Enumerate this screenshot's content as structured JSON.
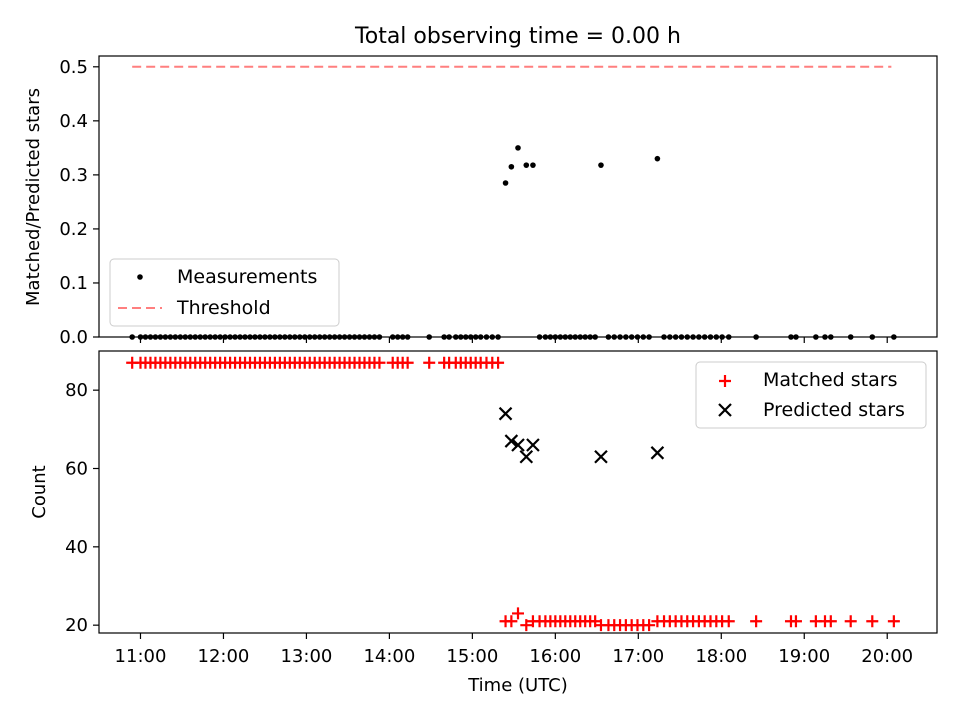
{
  "chart_data": [
    {
      "type": "scatter",
      "title": "Total observing time = 0.00 h",
      "xlabel": "",
      "ylabel": "Matched/Predicted stars",
      "xlim": [
        10.5,
        20.6
      ],
      "ylim": [
        0.0,
        0.52
      ],
      "yticks": [
        "0.0",
        "0.1",
        "0.2",
        "0.3",
        "0.4",
        "0.5"
      ],
      "grid": false,
      "legend_position": "lower-left",
      "colors": {
        "measurements": "#000000",
        "threshold": "#ff7f7f"
      },
      "legend": [
        {
          "label": "Measurements",
          "marker": "dot",
          "color": "#000000"
        },
        {
          "label": "Threshold",
          "marker": "dashed-line",
          "color": "#ff7f7f"
        }
      ],
      "threshold": {
        "y": 0.5,
        "x_start": 10.9,
        "x_end": 20.05
      },
      "series": [
        {
          "name": "Measurements",
          "points": [
            [
              15.4,
              0.285
            ],
            [
              15.47,
              0.315
            ],
            [
              15.55,
              0.35
            ],
            [
              15.65,
              0.318
            ],
            [
              15.73,
              0.318
            ],
            [
              16.55,
              0.318
            ],
            [
              17.23,
              0.33
            ],
            [
              10.9,
              0
            ],
            [
              11.0,
              0
            ],
            [
              11.06,
              0
            ],
            [
              11.12,
              0
            ],
            [
              11.18,
              0
            ],
            [
              11.24,
              0
            ],
            [
              11.3,
              0
            ],
            [
              11.36,
              0
            ],
            [
              11.42,
              0
            ],
            [
              11.48,
              0
            ],
            [
              11.54,
              0
            ],
            [
              11.6,
              0
            ],
            [
              11.66,
              0
            ],
            [
              11.72,
              0
            ],
            [
              11.78,
              0
            ],
            [
              11.84,
              0
            ],
            [
              11.9,
              0
            ],
            [
              11.96,
              0
            ],
            [
              12.02,
              0
            ],
            [
              12.08,
              0
            ],
            [
              12.14,
              0
            ],
            [
              12.2,
              0
            ],
            [
              12.26,
              0
            ],
            [
              12.32,
              0
            ],
            [
              12.38,
              0
            ],
            [
              12.44,
              0
            ],
            [
              12.5,
              0
            ],
            [
              12.56,
              0
            ],
            [
              12.62,
              0
            ],
            [
              12.68,
              0
            ],
            [
              12.74,
              0
            ],
            [
              12.8,
              0
            ],
            [
              12.86,
              0
            ],
            [
              12.92,
              0
            ],
            [
              12.98,
              0
            ],
            [
              13.04,
              0
            ],
            [
              13.1,
              0
            ],
            [
              13.16,
              0
            ],
            [
              13.22,
              0
            ],
            [
              13.28,
              0
            ],
            [
              13.34,
              0
            ],
            [
              13.4,
              0
            ],
            [
              13.46,
              0
            ],
            [
              13.52,
              0
            ],
            [
              13.58,
              0
            ],
            [
              13.64,
              0
            ],
            [
              13.7,
              0
            ],
            [
              13.76,
              0
            ],
            [
              13.82,
              0
            ],
            [
              13.88,
              0
            ],
            [
              14.04,
              0
            ],
            [
              14.1,
              0
            ],
            [
              14.16,
              0
            ],
            [
              14.22,
              0
            ],
            [
              14.48,
              0
            ],
            [
              14.66,
              0
            ],
            [
              14.72,
              0
            ],
            [
              14.8,
              0
            ],
            [
              14.86,
              0
            ],
            [
              14.92,
              0
            ],
            [
              14.98,
              0
            ],
            [
              15.04,
              0
            ],
            [
              15.1,
              0
            ],
            [
              15.17,
              0
            ],
            [
              15.24,
              0
            ],
            [
              15.31,
              0
            ],
            [
              15.81,
              0
            ],
            [
              15.88,
              0
            ],
            [
              15.94,
              0
            ],
            [
              16.0,
              0
            ],
            [
              16.06,
              0
            ],
            [
              16.12,
              0
            ],
            [
              16.18,
              0
            ],
            [
              16.24,
              0
            ],
            [
              16.3,
              0
            ],
            [
              16.36,
              0
            ],
            [
              16.42,
              0
            ],
            [
              16.48,
              0
            ],
            [
              16.64,
              0
            ],
            [
              16.71,
              0
            ],
            [
              16.78,
              0
            ],
            [
              16.85,
              0
            ],
            [
              16.92,
              0
            ],
            [
              16.99,
              0
            ],
            [
              17.06,
              0
            ],
            [
              17.13,
              0
            ],
            [
              17.31,
              0
            ],
            [
              17.38,
              0
            ],
            [
              17.45,
              0
            ],
            [
              17.52,
              0
            ],
            [
              17.59,
              0
            ],
            [
              17.66,
              0
            ],
            [
              17.73,
              0
            ],
            [
              17.8,
              0
            ],
            [
              17.87,
              0
            ],
            [
              17.94,
              0
            ],
            [
              18.01,
              0
            ],
            [
              18.09,
              0
            ],
            [
              18.42,
              0
            ],
            [
              18.84,
              0
            ],
            [
              18.9,
              0
            ],
            [
              19.14,
              0
            ],
            [
              19.25,
              0
            ],
            [
              19.32,
              0
            ],
            [
              19.56,
              0
            ],
            [
              19.82,
              0
            ],
            [
              20.08,
              0
            ]
          ]
        }
      ]
    },
    {
      "type": "scatter",
      "title": "",
      "xlabel": "Time (UTC)",
      "ylabel": "Count",
      "xlim": [
        10.5,
        20.6
      ],
      "ylim": [
        18,
        90
      ],
      "xticks": [
        "11:00",
        "12:00",
        "13:00",
        "14:00",
        "15:00",
        "16:00",
        "17:00",
        "18:00",
        "19:00",
        "20:00"
      ],
      "xtick_values": [
        11,
        12,
        13,
        14,
        15,
        16,
        17,
        18,
        19,
        20
      ],
      "yticks": [
        "20",
        "40",
        "60",
        "80"
      ],
      "ytick_values": [
        20,
        40,
        60,
        80
      ],
      "grid": false,
      "legend_position": "top-right",
      "colors": {
        "matched": "#ff0000",
        "predicted": "#000000"
      },
      "legend": [
        {
          "label": "Matched stars",
          "marker": "plus",
          "color": "#ff0000"
        },
        {
          "label": "Predicted stars",
          "marker": "x",
          "color": "#000000"
        }
      ],
      "series": [
        {
          "name": "Matched stars",
          "points": [
            [
              10.9,
              87
            ],
            [
              11.0,
              87
            ],
            [
              11.06,
              87
            ],
            [
              11.12,
              87
            ],
            [
              11.18,
              87
            ],
            [
              11.24,
              87
            ],
            [
              11.3,
              87
            ],
            [
              11.36,
              87
            ],
            [
              11.42,
              87
            ],
            [
              11.48,
              87
            ],
            [
              11.54,
              87
            ],
            [
              11.6,
              87
            ],
            [
              11.66,
              87
            ],
            [
              11.72,
              87
            ],
            [
              11.78,
              87
            ],
            [
              11.84,
              87
            ],
            [
              11.9,
              87
            ],
            [
              11.96,
              87
            ],
            [
              12.02,
              87
            ],
            [
              12.08,
              87
            ],
            [
              12.14,
              87
            ],
            [
              12.2,
              87
            ],
            [
              12.26,
              87
            ],
            [
              12.32,
              87
            ],
            [
              12.38,
              87
            ],
            [
              12.44,
              87
            ],
            [
              12.5,
              87
            ],
            [
              12.56,
              87
            ],
            [
              12.62,
              87
            ],
            [
              12.68,
              87
            ],
            [
              12.74,
              87
            ],
            [
              12.8,
              87
            ],
            [
              12.86,
              87
            ],
            [
              12.92,
              87
            ],
            [
              12.98,
              87
            ],
            [
              13.04,
              87
            ],
            [
              13.1,
              87
            ],
            [
              13.16,
              87
            ],
            [
              13.22,
              87
            ],
            [
              13.28,
              87
            ],
            [
              13.34,
              87
            ],
            [
              13.4,
              87
            ],
            [
              13.46,
              87
            ],
            [
              13.52,
              87
            ],
            [
              13.58,
              87
            ],
            [
              13.64,
              87
            ],
            [
              13.7,
              87
            ],
            [
              13.76,
              87
            ],
            [
              13.82,
              87
            ],
            [
              13.88,
              87
            ],
            [
              14.04,
              87
            ],
            [
              14.1,
              87
            ],
            [
              14.16,
              87
            ],
            [
              14.22,
              87
            ],
            [
              14.48,
              87
            ],
            [
              14.66,
              87
            ],
            [
              14.72,
              87
            ],
            [
              14.8,
              87
            ],
            [
              14.86,
              87
            ],
            [
              14.92,
              87
            ],
            [
              14.98,
              87
            ],
            [
              15.04,
              87
            ],
            [
              15.1,
              87
            ],
            [
              15.17,
              87
            ],
            [
              15.24,
              87
            ],
            [
              15.31,
              87
            ],
            [
              15.4,
              21
            ],
            [
              15.47,
              21
            ],
            [
              15.55,
              23
            ],
            [
              15.65,
              20
            ],
            [
              15.73,
              21
            ],
            [
              15.81,
              21
            ],
            [
              15.88,
              21
            ],
            [
              15.94,
              21
            ],
            [
              16.0,
              21
            ],
            [
              16.06,
              21
            ],
            [
              16.12,
              21
            ],
            [
              16.18,
              21
            ],
            [
              16.24,
              21
            ],
            [
              16.3,
              21
            ],
            [
              16.36,
              21
            ],
            [
              16.42,
              21
            ],
            [
              16.48,
              21
            ],
            [
              16.55,
              20
            ],
            [
              16.64,
              20
            ],
            [
              16.71,
              20
            ],
            [
              16.78,
              20
            ],
            [
              16.85,
              20
            ],
            [
              16.92,
              20
            ],
            [
              16.99,
              20
            ],
            [
              17.06,
              20
            ],
            [
              17.13,
              20
            ],
            [
              17.23,
              21
            ],
            [
              17.31,
              21
            ],
            [
              17.38,
              21
            ],
            [
              17.45,
              21
            ],
            [
              17.52,
              21
            ],
            [
              17.59,
              21
            ],
            [
              17.66,
              21
            ],
            [
              17.73,
              21
            ],
            [
              17.8,
              21
            ],
            [
              17.87,
              21
            ],
            [
              17.94,
              21
            ],
            [
              18.01,
              21
            ],
            [
              18.09,
              21
            ],
            [
              18.42,
              21
            ],
            [
              18.84,
              21
            ],
            [
              18.9,
              21
            ],
            [
              19.14,
              21
            ],
            [
              19.25,
              21
            ],
            [
              19.32,
              21
            ],
            [
              19.56,
              21
            ],
            [
              19.82,
              21
            ],
            [
              20.08,
              21
            ]
          ]
        },
        {
          "name": "Predicted stars",
          "points": [
            [
              15.4,
              74
            ],
            [
              15.47,
              67
            ],
            [
              15.55,
              66
            ],
            [
              15.65,
              63
            ],
            [
              15.73,
              66
            ],
            [
              16.55,
              63
            ],
            [
              17.23,
              64
            ]
          ]
        }
      ]
    }
  ]
}
